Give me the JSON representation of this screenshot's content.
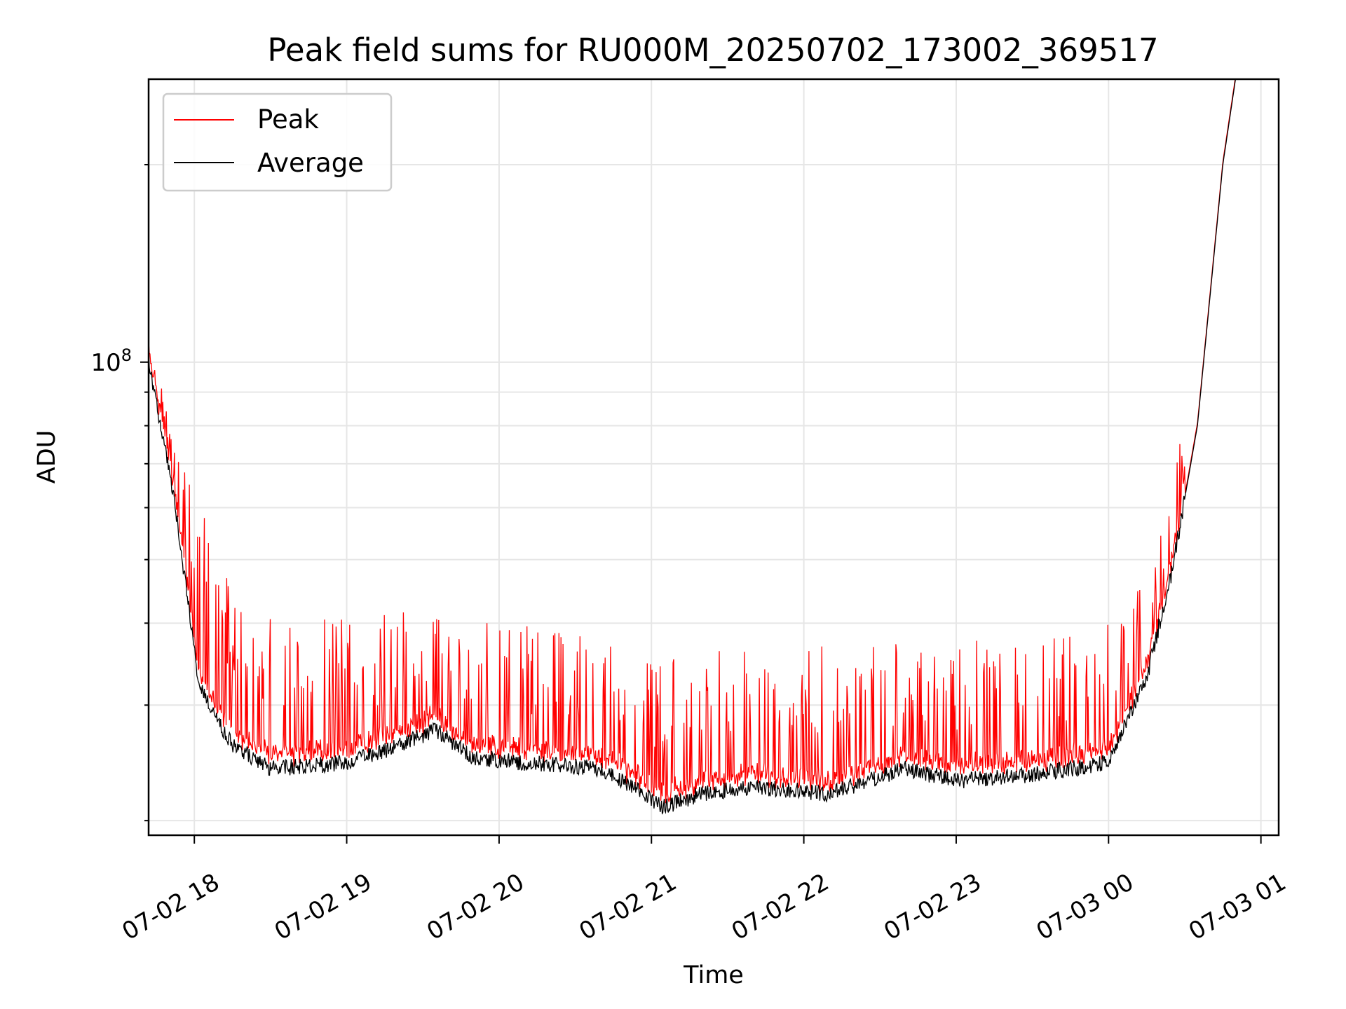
{
  "chart_data": {
    "type": "line",
    "title": "Peak field sums for RU000M_20250702_173002_369517",
    "xlabel": "Time",
    "ylabel": "ADU",
    "yscale": "log",
    "ylim": [
      19000000,
      270000000
    ],
    "y_major_ticks": [
      {
        "value": 100000000,
        "label_base": "10",
        "label_exp": "8"
      }
    ],
    "y_minor_ticks": [
      20000000,
      30000000,
      40000000,
      50000000,
      60000000,
      70000000,
      80000000,
      90000000,
      200000000
    ],
    "xlim": [
      "2025-07-02 17:42",
      "2025-07-03 01:07"
    ],
    "x_ticks": [
      {
        "time": "2025-07-02 18:00",
        "label": "07-02 18"
      },
      {
        "time": "2025-07-02 19:00",
        "label": "07-02 19"
      },
      {
        "time": "2025-07-02 20:00",
        "label": "07-02 20"
      },
      {
        "time": "2025-07-02 21:00",
        "label": "07-02 21"
      },
      {
        "time": "2025-07-02 22:00",
        "label": "07-02 22"
      },
      {
        "time": "2025-07-02 23:00",
        "label": "07-02 23"
      },
      {
        "time": "2025-07-03 00:00",
        "label": "07-03 00"
      },
      {
        "time": "2025-07-03 01:00",
        "label": "07-03 01"
      }
    ],
    "grid": true,
    "legend_position": "top-left",
    "series": [
      {
        "name": "Peak",
        "color": "#ff0000",
        "description_points": [
          {
            "time": "2025-07-02 17:42",
            "value": 102000000
          },
          {
            "time": "2025-07-02 17:55",
            "value": 78000000
          },
          {
            "time": "2025-07-02 18:10",
            "value": 48000000
          },
          {
            "time": "2025-07-02 18:40",
            "value": 40000000
          },
          {
            "time": "2025-07-02 19:10",
            "value": 42000000
          },
          {
            "time": "2025-07-02 19:40",
            "value": 41000000
          },
          {
            "time": "2025-07-02 20:30",
            "value": 39000000
          },
          {
            "time": "2025-07-02 21:00",
            "value": 35000000
          },
          {
            "time": "2025-07-02 21:30",
            "value": 37000000
          },
          {
            "time": "2025-07-02 22:30",
            "value": 38000000
          },
          {
            "time": "2025-07-02 23:30",
            "value": 38000000
          },
          {
            "time": "2025-07-03 00:00",
            "value": 40000000
          },
          {
            "time": "2025-07-03 00:20",
            "value": 55000000
          },
          {
            "time": "2025-07-03 00:40",
            "value": 120000000
          },
          {
            "time": "2025-07-03 00:50",
            "value": 270000000
          }
        ]
      },
      {
        "name": "Average",
        "color": "#000000",
        "description_points": [
          {
            "time": "2025-07-02 17:42",
            "value": 100000000
          },
          {
            "time": "2025-07-02 17:52",
            "value": 62000000
          },
          {
            "time": "2025-07-02 18:02",
            "value": 32000000
          },
          {
            "time": "2025-07-02 18:15",
            "value": 26000000
          },
          {
            "time": "2025-07-02 18:30",
            "value": 24000000
          },
          {
            "time": "2025-07-02 19:00",
            "value": 24500000
          },
          {
            "time": "2025-07-02 19:20",
            "value": 26000000
          },
          {
            "time": "2025-07-02 19:35",
            "value": 27500000
          },
          {
            "time": "2025-07-02 19:50",
            "value": 25000000
          },
          {
            "time": "2025-07-02 20:10",
            "value": 24500000
          },
          {
            "time": "2025-07-02 20:40",
            "value": 24000000
          },
          {
            "time": "2025-07-02 21:05",
            "value": 21000000
          },
          {
            "time": "2025-07-02 21:20",
            "value": 22000000
          },
          {
            "time": "2025-07-02 21:40",
            "value": 22500000
          },
          {
            "time": "2025-07-02 22:10",
            "value": 22000000
          },
          {
            "time": "2025-07-02 22:40",
            "value": 24000000
          },
          {
            "time": "2025-07-02 23:00",
            "value": 23000000
          },
          {
            "time": "2025-07-02 23:30",
            "value": 23500000
          },
          {
            "time": "2025-07-03 00:00",
            "value": 24500000
          },
          {
            "time": "2025-07-03 00:15",
            "value": 33000000
          },
          {
            "time": "2025-07-03 00:25",
            "value": 48000000
          },
          {
            "time": "2025-07-03 00:35",
            "value": 80000000
          },
          {
            "time": "2025-07-03 00:45",
            "value": 200000000
          },
          {
            "time": "2025-07-03 00:50",
            "value": 270000000
          }
        ]
      }
    ]
  }
}
